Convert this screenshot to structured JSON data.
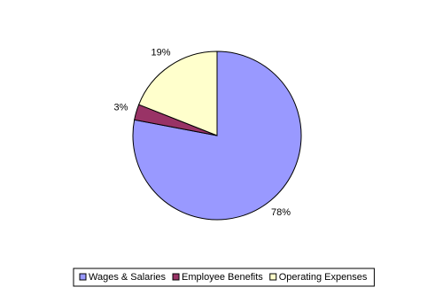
{
  "chart_data": {
    "type": "pie",
    "categories": [
      "Wages & Salaries",
      "Employee Benefits",
      "Operating Expenses"
    ],
    "values": [
      78,
      3,
      19
    ],
    "value_labels": [
      "78%",
      "3%",
      "19%"
    ],
    "colors": [
      "#9999ff",
      "#993366",
      "#ffffcc"
    ],
    "legend": "bottom"
  }
}
